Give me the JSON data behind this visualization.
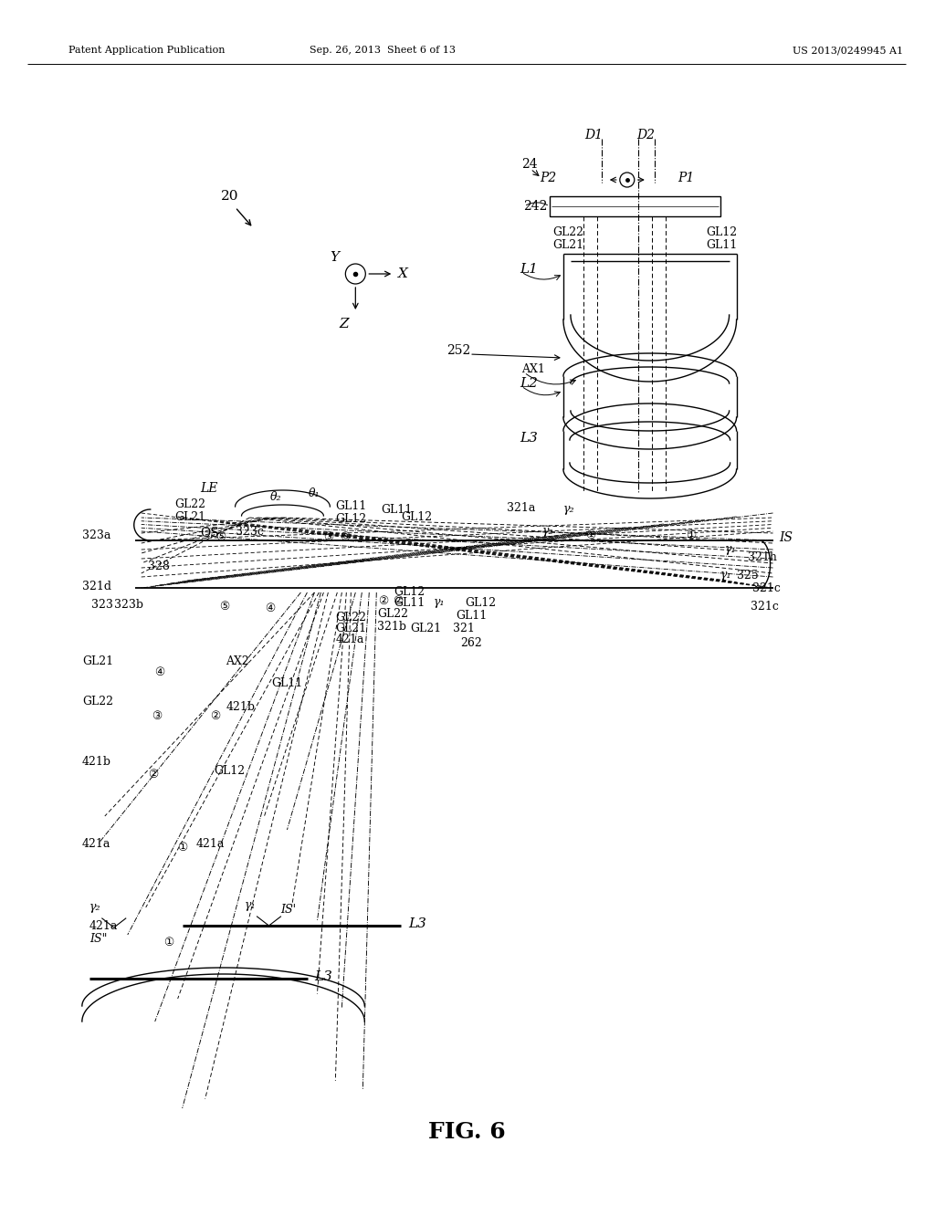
{
  "bg_color": "#ffffff",
  "line_color": "#000000",
  "header_left": "Patent Application Publication",
  "header_mid": "Sep. 26, 2013  Sheet 6 of 13",
  "header_right": "US 2013/0249945 A1",
  "fig_label": "FIG. 6"
}
